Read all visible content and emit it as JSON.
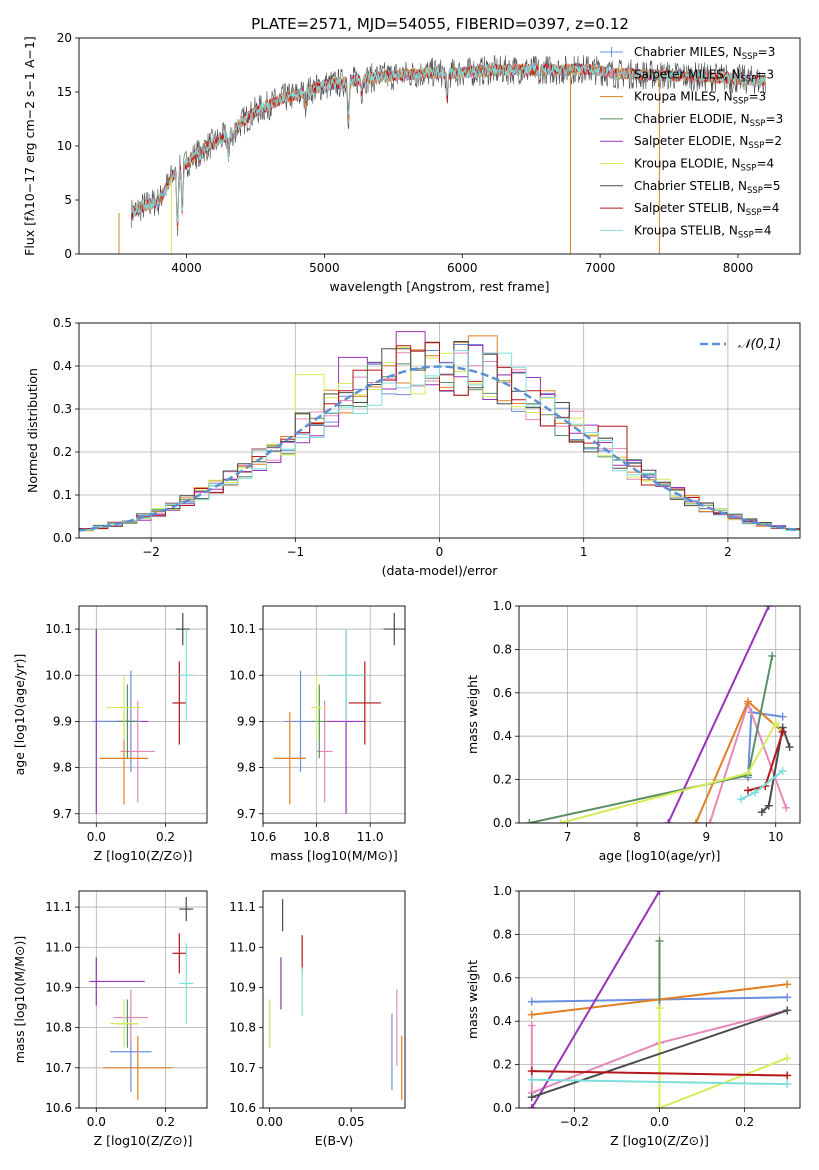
{
  "figure_title": "PLATE=2571, MJD=54055, FIBERID=0397, z=0.12",
  "colors": {
    "Chabrier MILES": "#6b8fe0",
    "Salpeter MILES": "#e589b8",
    "Kroupa MILES": "#e07f24",
    "Chabrier ELODIE": "#5a8f66",
    "Salpeter ELODIE": "#9932b8",
    "Kroupa ELODIE": "#d6ec5a",
    "Chabrier STELIB": "#4a4a4a",
    "Salpeter STELIB": "#b3171a",
    "Kroupa STELIB": "#7fdedc",
    "gaussian": "#5b8fd4"
  },
  "chart_data": [
    {
      "id": "spectrum",
      "type": "line",
      "title": "PLATE=2571, MJD=54055, FIBERID=0397, z=0.12",
      "xlabel": "wavelength [Angstrom, rest frame]",
      "ylabel": "Flux [fλ10−17 erg cm−2 s−1 A−1]",
      "xlim": [
        3220,
        8450
      ],
      "ylim": [
        0,
        20
      ],
      "xticks": [
        "4000",
        "5000",
        "6000",
        "7000",
        "8000"
      ],
      "yticks": [
        "0",
        "5",
        "10",
        "15",
        "20"
      ],
      "grid": false,
      "legend_position": "top-right",
      "legend": [
        {
          "main": "Chabrier MILES, N",
          "sub": "SSP",
          "tail": "=3"
        },
        {
          "main": "Salpeter MILES, N",
          "sub": "SSP",
          "tail": "=3"
        },
        {
          "main": "Kroupa MILES, N",
          "sub": "SSP",
          "tail": "=3"
        },
        {
          "main": "Chabrier ELODIE, N",
          "sub": "SSP",
          "tail": "=3"
        },
        {
          "main": "Salpeter ELODIE, N",
          "sub": "SSP",
          "tail": "=2"
        },
        {
          "main": "Kroupa ELODIE, N",
          "sub": "SSP",
          "tail": "=4"
        },
        {
          "main": "Chabrier STELIB, N",
          "sub": "SSP",
          "tail": "=5"
        },
        {
          "main": "Salpeter STELIB, N",
          "sub": "SSP",
          "tail": "=4"
        },
        {
          "main": "Kroupa STELIB, N",
          "sub": "SSP",
          "tail": "=4"
        }
      ],
      "continuum": [
        [
          3600,
          3.8
        ],
        [
          3700,
          4.5
        ],
        [
          3800,
          4.9
        ],
        [
          3900,
          7.3
        ],
        [
          4000,
          8.4
        ],
        [
          4100,
          9.6
        ],
        [
          4200,
          10.3
        ],
        [
          4300,
          11.0
        ],
        [
          4400,
          12.2
        ],
        [
          4500,
          13.2
        ],
        [
          4600,
          13.8
        ],
        [
          4700,
          14.4
        ],
        [
          4800,
          14.7
        ],
        [
          4900,
          15.2
        ],
        [
          5000,
          15.6
        ],
        [
          5100,
          15.8
        ],
        [
          5200,
          16.0
        ],
        [
          5300,
          16.2
        ],
        [
          5400,
          16.4
        ],
        [
          5500,
          16.5
        ],
        [
          5600,
          16.6
        ],
        [
          5700,
          16.7
        ],
        [
          5800,
          16.8
        ],
        [
          5900,
          16.7
        ],
        [
          6000,
          16.8
        ],
        [
          6100,
          16.9
        ],
        [
          6200,
          17.0
        ],
        [
          6300,
          17.0
        ],
        [
          6400,
          17.1
        ],
        [
          6500,
          17.0
        ],
        [
          6600,
          17.1
        ],
        [
          6700,
          17.0
        ],
        [
          6800,
          17.1
        ],
        [
          6900,
          17.1
        ],
        [
          7000,
          17.0
        ],
        [
          7100,
          16.7
        ],
        [
          7200,
          16.7
        ],
        [
          7300,
          16.6
        ],
        [
          7400,
          16.6
        ],
        [
          7500,
          16.5
        ],
        [
          7600,
          16.5
        ],
        [
          7700,
          16.4
        ],
        [
          7800,
          16.4
        ],
        [
          7900,
          16.3
        ],
        [
          8000,
          16.2
        ],
        [
          8100,
          16.1
        ],
        [
          8200,
          16.0
        ]
      ],
      "absorption_features": [
        [
          3934,
          5.2
        ],
        [
          3969,
          4.0
        ],
        [
          4102,
          1.0
        ],
        [
          4304,
          2.0
        ],
        [
          4340,
          1.0
        ],
        [
          4861,
          1.1
        ],
        [
          5175,
          3.3
        ],
        [
          5270,
          1.1
        ],
        [
          5890,
          2.4
        ],
        [
          6563,
          1.0
        ]
      ],
      "spikes": [
        {
          "series": "Kroupa MILES",
          "x": 3510,
          "y": 0
        },
        {
          "series": "Kroupa ELODIE",
          "x": 3890,
          "y": 0
        },
        {
          "series": "Kroupa MILES",
          "x": 6785,
          "y": 0
        },
        {
          "series": "Kroupa MILES",
          "x": 7430,
          "y": 0
        }
      ]
    },
    {
      "id": "residuals",
      "type": "histogram",
      "xlabel": "(data-model)/error",
      "ylabel": "Normed distribution",
      "xlim": [
        -2.5,
        2.5
      ],
      "ylim": [
        0,
        0.5
      ],
      "xticks": [
        "−2",
        "−1",
        "0",
        "1",
        "2"
      ],
      "yticks": [
        "0.0",
        "0.1",
        "0.2",
        "0.3",
        "0.4",
        "0.5"
      ],
      "grid": true,
      "bin_width": 0.1,
      "legend_position": "top-right",
      "gaussian_label": "𝒩(0,1)",
      "highlight_bins": [
        {
          "series": "Salpeter ELODIE",
          "x": -0.2,
          "y": 0.48
        },
        {
          "series": "Salpeter ELODIE",
          "x": -0.6,
          "y": 0.42
        },
        {
          "series": "Kroupa MILES",
          "x": 0.3,
          "y": 0.47
        },
        {
          "series": "Chabrier MILES",
          "x": 0.2,
          "y": 0.45
        },
        {
          "series": "Kroupa ELODIE",
          "x": -0.9,
          "y": 0.38
        },
        {
          "series": "Salpeter STELIB",
          "x": 1.2,
          "y": 0.26
        },
        {
          "series": "Chabrier STELIB",
          "x": -0.3,
          "y": 0.44
        },
        {
          "series": "Kroupa STELIB",
          "x": 0.4,
          "y": 0.43
        }
      ]
    },
    {
      "id": "age_vs_Z",
      "type": "scatter",
      "xlabel": "Z [log10(Z/Z⊙)]",
      "ylabel": "age [log10(age/yr)]",
      "xlim": [
        -0.05,
        0.32
      ],
      "ylim": [
        9.68,
        10.15
      ],
      "xticks": [
        "0.0",
        "0.2"
      ],
      "yticks": [
        "9.7",
        "9.8",
        "9.9",
        "10.0",
        "10.1"
      ],
      "grid": true,
      "points": [
        {
          "series": "Chabrier MILES",
          "x": 0.1,
          "y": 9.9,
          "xerr": 0.03,
          "yerr": 0.11
        },
        {
          "series": "Salpeter MILES",
          "x": 0.12,
          "y": 9.835,
          "xerr": 0.05,
          "yerr": 0.11
        },
        {
          "series": "Kroupa MILES",
          "x": 0.08,
          "y": 9.82,
          "xerr": 0.07,
          "yerr": 0.1
        },
        {
          "series": "Chabrier ELODIE",
          "x": 0.09,
          "y": 9.9,
          "xerr": 0.03,
          "yerr": 0.08
        },
        {
          "series": "Salpeter ELODIE",
          "x": 0.0,
          "y": 9.9,
          "xerr": 0.0,
          "yerr": 0.2
        },
        {
          "series": "Kroupa ELODIE",
          "x": 0.08,
          "y": 9.93,
          "xerr": 0.05,
          "yerr": 0.07
        },
        {
          "series": "Chabrier STELIB",
          "x": 0.25,
          "y": 10.1,
          "xerr": 0.02,
          "yerr": 0.035
        },
        {
          "series": "Salpeter STELIB",
          "x": 0.24,
          "y": 9.94,
          "xerr": 0.02,
          "yerr": 0.09
        },
        {
          "series": "Kroupa STELIB",
          "x": 0.26,
          "y": 10.0,
          "xerr": 0.02,
          "yerr": 0.1
        }
      ],
      "extra_segments": [
        {
          "series": "Salpeter ELODIE",
          "x1": 0.0,
          "y1": 9.9,
          "x2": 0.15,
          "y2": 9.9
        },
        {
          "series": "Chabrier MILES",
          "x1": -0.01,
          "y1": 9.9,
          "x2": 0.12,
          "y2": 9.9
        }
      ]
    },
    {
      "id": "age_vs_mass",
      "type": "scatter",
      "xlabel": "mass [log10(M/M⊙)]",
      "ylabel": "",
      "xlim": [
        10.6,
        11.13
      ],
      "ylim": [
        9.68,
        10.15
      ],
      "xticks": [
        "10.6",
        "10.8",
        "11.0"
      ],
      "yticks": [
        "9.7",
        "9.8",
        "9.9",
        "10.0",
        "10.1"
      ],
      "grid": true,
      "points": [
        {
          "series": "Chabrier MILES",
          "x": 10.74,
          "y": 9.9,
          "xerr": 0.06,
          "yerr": 0.11
        },
        {
          "series": "Salpeter MILES",
          "x": 10.83,
          "y": 9.835,
          "xerr": 0.03,
          "yerr": 0.11
        },
        {
          "series": "Kroupa MILES",
          "x": 10.7,
          "y": 9.82,
          "xerr": 0.06,
          "yerr": 0.1
        },
        {
          "series": "Chabrier ELODIE",
          "x": 10.81,
          "y": 9.9,
          "xerr": 0.03,
          "yerr": 0.08
        },
        {
          "series": "Salpeter ELODIE",
          "x": 10.91,
          "y": 9.9,
          "xerr": 0.07,
          "yerr": 0.2
        },
        {
          "series": "Kroupa ELODIE",
          "x": 10.8,
          "y": 9.93,
          "xerr": 0.02,
          "yerr": 0.07
        },
        {
          "series": "Chabrier STELIB",
          "x": 11.09,
          "y": 10.1,
          "xerr": 0.04,
          "yerr": 0.035
        },
        {
          "series": "Salpeter STELIB",
          "x": 10.98,
          "y": 9.94,
          "xerr": 0.06,
          "yerr": 0.09
        },
        {
          "series": "Kroupa STELIB",
          "x": 10.91,
          "y": 10.0,
          "xerr": 0.07,
          "yerr": 0.1
        }
      ]
    },
    {
      "id": "massweight_vs_age",
      "type": "line",
      "xlabel": "age [log10(age/yr)]",
      "ylabel": "mass weight",
      "xlim": [
        6.3,
        10.35
      ],
      "ylim": [
        0,
        1
      ],
      "xticks": [
        "7",
        "8",
        "9",
        "10"
      ],
      "yticks": [
        "0.0",
        "0.2",
        "0.4",
        "0.6",
        "0.8",
        "1.0"
      ],
      "grid": true,
      "series": [
        {
          "name": "Chabrier MILES",
          "x": [
            9.6,
            9.65,
            10.1
          ],
          "y": [
            0.21,
            0.51,
            0.49
          ]
        },
        {
          "name": "Salpeter MILES",
          "x": [
            9.05,
            9.6,
            10.15
          ],
          "y": [
            0.0,
            0.55,
            0.07
          ]
        },
        {
          "name": "Kroupa MILES",
          "x": [
            8.85,
            9.6,
            10.1
          ],
          "y": [
            0.0,
            0.56,
            0.42
          ]
        },
        {
          "name": "Chabrier ELODIE",
          "x": [
            6.45,
            9.6,
            9.95
          ],
          "y": [
            0.0,
            0.22,
            0.77
          ]
        },
        {
          "name": "Salpeter ELODIE",
          "x": [
            8.45,
            9.9
          ],
          "y": [
            0.0,
            1.0
          ]
        },
        {
          "name": "Kroupa ELODIE",
          "x": [
            6.9,
            9.6,
            10.0,
            10.1
          ],
          "y": [
            0.0,
            0.23,
            0.46,
            0.42
          ]
        },
        {
          "name": "Chabrier STELIB",
          "x": [
            9.8,
            9.9,
            10.1,
            10.2
          ],
          "y": [
            0.05,
            0.08,
            0.44,
            0.35
          ]
        },
        {
          "name": "Salpeter STELIB",
          "x": [
            9.6,
            9.85,
            10.1
          ],
          "y": [
            0.15,
            0.17,
            0.42
          ]
        },
        {
          "name": "Kroupa STELIB",
          "x": [
            9.5,
            9.7,
            10.1
          ],
          "y": [
            0.11,
            0.14,
            0.24
          ]
        }
      ]
    },
    {
      "id": "mass_vs_Z",
      "type": "scatter",
      "xlabel": "Z [log10(Z/Z⊙)]",
      "ylabel": "mass [log10(M/M⊙)]",
      "xlim": [
        -0.05,
        0.32
      ],
      "ylim": [
        10.6,
        11.14
      ],
      "xticks": [
        "0.0",
        "0.2"
      ],
      "yticks": [
        "10.6",
        "10.7",
        "10.8",
        "10.9",
        "11.0",
        "11.1"
      ],
      "grid": true,
      "points": [
        {
          "series": "Chabrier MILES",
          "x": 0.1,
          "y": 10.74,
          "xerr": 0.06,
          "yerr": 0.1
        },
        {
          "series": "Salpeter MILES",
          "x": 0.1,
          "y": 10.825,
          "xerr": 0.05,
          "yerr": 0.07
        },
        {
          "series": "Kroupa MILES",
          "x": 0.12,
          "y": 10.7,
          "xerr": 0.1,
          "yerr": 0.08
        },
        {
          "series": "Chabrier ELODIE",
          "x": 0.09,
          "y": 10.81,
          "xerr": 0.03,
          "yerr": 0.06
        },
        {
          "series": "Salpeter ELODIE",
          "x": 0.0,
          "y": 10.915,
          "xerr": 0.0,
          "yerr": 0.06
        },
        {
          "series": "Kroupa ELODIE",
          "x": 0.08,
          "y": 10.81,
          "xerr": 0.04,
          "yerr": 0.06
        },
        {
          "series": "Chabrier STELIB",
          "x": 0.26,
          "y": 11.095,
          "xerr": 0.02,
          "yerr": 0.03
        },
        {
          "series": "Salpeter STELIB",
          "x": 0.24,
          "y": 10.985,
          "xerr": 0.02,
          "yerr": 0.05
        },
        {
          "series": "Kroupa STELIB",
          "x": 0.26,
          "y": 10.91,
          "xerr": 0.02,
          "yerr": 0.1
        }
      ],
      "extra_segments": [
        {
          "series": "Salpeter ELODIE",
          "x1": -0.02,
          "y1": 10.915,
          "x2": 0.14,
          "y2": 10.915
        }
      ]
    },
    {
      "id": "mass_vs_ebv",
      "type": "scatter",
      "xlabel": "E(B-V)",
      "ylabel": "",
      "xlim": [
        -0.004,
        0.083
      ],
      "ylim": [
        10.6,
        11.14
      ],
      "xticks": [
        "0.00",
        "0.05"
      ],
      "yticks": [
        "10.6",
        "10.7",
        "10.8",
        "10.9",
        "11.0",
        "11.1"
      ],
      "grid": false,
      "points": [
        {
          "series": "Chabrier MILES",
          "x": 0.075,
          "y": 10.74,
          "xerr": 0,
          "yerr": 0.095
        },
        {
          "series": "Salpeter MILES",
          "x": 0.078,
          "y": 10.8,
          "xerr": 0,
          "yerr": 0.095
        },
        {
          "series": "Kroupa MILES",
          "x": 0.081,
          "y": 10.7,
          "xerr": 0,
          "yerr": 0.08
        },
        {
          "series": "Chabrier ELODIE",
          "x": 0.0,
          "y": 10.81,
          "xerr": 0,
          "yerr": 0.06
        },
        {
          "series": "Salpeter ELODIE",
          "x": 0.007,
          "y": 10.91,
          "xerr": 0,
          "yerr": 0.065
        },
        {
          "series": "Kroupa ELODIE",
          "x": 0.0,
          "y": 10.81,
          "xerr": 0,
          "yerr": 0.06
        },
        {
          "series": "Chabrier STELIB",
          "x": 0.008,
          "y": 11.08,
          "xerr": 0,
          "yerr": 0.04
        },
        {
          "series": "Salpeter STELIB",
          "x": 0.02,
          "y": 10.985,
          "xerr": 0,
          "yerr": 0.045
        },
        {
          "series": "Kroupa STELIB",
          "x": 0.02,
          "y": 10.89,
          "xerr": 0,
          "yerr": 0.06
        }
      ]
    },
    {
      "id": "massweight_vs_Z",
      "type": "line",
      "xlabel": "Z [log10(Z/Z⊙)]",
      "ylabel": "mass weight",
      "xlim": [
        -0.33,
        0.33
      ],
      "ylim": [
        0,
        1
      ],
      "xticks": [
        "−0.2",
        "0.0",
        "0.2"
      ],
      "yticks": [
        "0.0",
        "0.2",
        "0.4",
        "0.6",
        "0.8",
        "1.0"
      ],
      "grid": true,
      "series": [
        {
          "name": "Chabrier MILES",
          "x": [
            -0.3,
            0.3
          ],
          "y": [
            0.49,
            0.51
          ]
        },
        {
          "name": "Salpeter MILES",
          "x": [
            -0.3,
            -0.3,
            0.0,
            0.3
          ],
          "y": [
            0.38,
            0.07,
            0.3,
            0.45
          ]
        },
        {
          "name": "Kroupa MILES",
          "x": [
            -0.3,
            0.0,
            0.3
          ],
          "y": [
            0.43,
            0.5,
            0.57
          ]
        },
        {
          "name": "Chabrier ELODIE",
          "x": [
            0.0,
            0.0
          ],
          "y": [
            0.0,
            0.77
          ]
        },
        {
          "name": "Salpeter ELODIE",
          "x": [
            -0.3,
            0.0
          ],
          "y": [
            0.0,
            1.0
          ]
        },
        {
          "name": "Kroupa ELODIE",
          "x": [
            0.0,
            0.0,
            0.3
          ],
          "y": [
            0.46,
            0.0,
            0.23
          ]
        },
        {
          "name": "Chabrier STELIB",
          "x": [
            -0.3,
            0.3
          ],
          "y": [
            0.05,
            0.45
          ]
        },
        {
          "name": "Salpeter STELIB",
          "x": [
            -0.3,
            0.3
          ],
          "y": [
            0.17,
            0.15
          ]
        },
        {
          "name": "Kroupa STELIB",
          "x": [
            -0.3,
            0.3
          ],
          "y": [
            0.13,
            0.11
          ]
        }
      ]
    }
  ]
}
